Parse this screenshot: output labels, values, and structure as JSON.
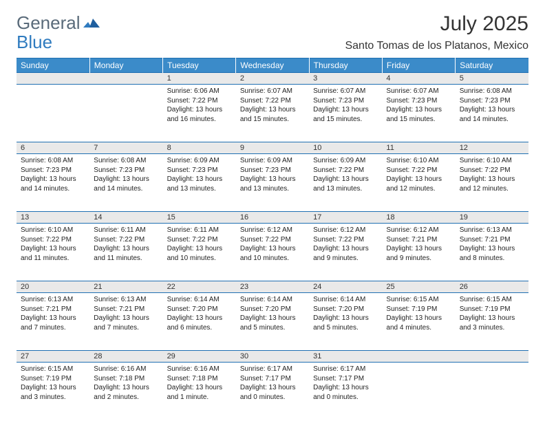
{
  "brand": {
    "part1": "General",
    "part2": "Blue"
  },
  "title": "July 2025",
  "location": "Santo Tomas de los Platanos, Mexico",
  "colors": {
    "header_bg": "#3b8bc9",
    "header_text": "#ffffff",
    "rule": "#1f6fb2",
    "daynum_bg": "#e9e9e9",
    "body_text": "#222222",
    "logo_gray": "#5a6b7a",
    "logo_blue": "#2f7bbf"
  },
  "columns": [
    "Sunday",
    "Monday",
    "Tuesday",
    "Wednesday",
    "Thursday",
    "Friday",
    "Saturday"
  ],
  "weeks": [
    [
      null,
      null,
      {
        "n": "1",
        "sunrise": "6:06 AM",
        "sunset": "7:22 PM",
        "daylight": "13 hours and 16 minutes."
      },
      {
        "n": "2",
        "sunrise": "6:07 AM",
        "sunset": "7:22 PM",
        "daylight": "13 hours and 15 minutes."
      },
      {
        "n": "3",
        "sunrise": "6:07 AM",
        "sunset": "7:23 PM",
        "daylight": "13 hours and 15 minutes."
      },
      {
        "n": "4",
        "sunrise": "6:07 AM",
        "sunset": "7:23 PM",
        "daylight": "13 hours and 15 minutes."
      },
      {
        "n": "5",
        "sunrise": "6:08 AM",
        "sunset": "7:23 PM",
        "daylight": "13 hours and 14 minutes."
      }
    ],
    [
      {
        "n": "6",
        "sunrise": "6:08 AM",
        "sunset": "7:23 PM",
        "daylight": "13 hours and 14 minutes."
      },
      {
        "n": "7",
        "sunrise": "6:08 AM",
        "sunset": "7:23 PM",
        "daylight": "13 hours and 14 minutes."
      },
      {
        "n": "8",
        "sunrise": "6:09 AM",
        "sunset": "7:23 PM",
        "daylight": "13 hours and 13 minutes."
      },
      {
        "n": "9",
        "sunrise": "6:09 AM",
        "sunset": "7:23 PM",
        "daylight": "13 hours and 13 minutes."
      },
      {
        "n": "10",
        "sunrise": "6:09 AM",
        "sunset": "7:22 PM",
        "daylight": "13 hours and 13 minutes."
      },
      {
        "n": "11",
        "sunrise": "6:10 AM",
        "sunset": "7:22 PM",
        "daylight": "13 hours and 12 minutes."
      },
      {
        "n": "12",
        "sunrise": "6:10 AM",
        "sunset": "7:22 PM",
        "daylight": "13 hours and 12 minutes."
      }
    ],
    [
      {
        "n": "13",
        "sunrise": "6:10 AM",
        "sunset": "7:22 PM",
        "daylight": "13 hours and 11 minutes."
      },
      {
        "n": "14",
        "sunrise": "6:11 AM",
        "sunset": "7:22 PM",
        "daylight": "13 hours and 11 minutes."
      },
      {
        "n": "15",
        "sunrise": "6:11 AM",
        "sunset": "7:22 PM",
        "daylight": "13 hours and 10 minutes."
      },
      {
        "n": "16",
        "sunrise": "6:12 AM",
        "sunset": "7:22 PM",
        "daylight": "13 hours and 10 minutes."
      },
      {
        "n": "17",
        "sunrise": "6:12 AM",
        "sunset": "7:22 PM",
        "daylight": "13 hours and 9 minutes."
      },
      {
        "n": "18",
        "sunrise": "6:12 AM",
        "sunset": "7:21 PM",
        "daylight": "13 hours and 9 minutes."
      },
      {
        "n": "19",
        "sunrise": "6:13 AM",
        "sunset": "7:21 PM",
        "daylight": "13 hours and 8 minutes."
      }
    ],
    [
      {
        "n": "20",
        "sunrise": "6:13 AM",
        "sunset": "7:21 PM",
        "daylight": "13 hours and 7 minutes."
      },
      {
        "n": "21",
        "sunrise": "6:13 AM",
        "sunset": "7:21 PM",
        "daylight": "13 hours and 7 minutes."
      },
      {
        "n": "22",
        "sunrise": "6:14 AM",
        "sunset": "7:20 PM",
        "daylight": "13 hours and 6 minutes."
      },
      {
        "n": "23",
        "sunrise": "6:14 AM",
        "sunset": "7:20 PM",
        "daylight": "13 hours and 5 minutes."
      },
      {
        "n": "24",
        "sunrise": "6:14 AM",
        "sunset": "7:20 PM",
        "daylight": "13 hours and 5 minutes."
      },
      {
        "n": "25",
        "sunrise": "6:15 AM",
        "sunset": "7:19 PM",
        "daylight": "13 hours and 4 minutes."
      },
      {
        "n": "26",
        "sunrise": "6:15 AM",
        "sunset": "7:19 PM",
        "daylight": "13 hours and 3 minutes."
      }
    ],
    [
      {
        "n": "27",
        "sunrise": "6:15 AM",
        "sunset": "7:19 PM",
        "daylight": "13 hours and 3 minutes."
      },
      {
        "n": "28",
        "sunrise": "6:16 AM",
        "sunset": "7:18 PM",
        "daylight": "13 hours and 2 minutes."
      },
      {
        "n": "29",
        "sunrise": "6:16 AM",
        "sunset": "7:18 PM",
        "daylight": "13 hours and 1 minute."
      },
      {
        "n": "30",
        "sunrise": "6:17 AM",
        "sunset": "7:17 PM",
        "daylight": "13 hours and 0 minutes."
      },
      {
        "n": "31",
        "sunrise": "6:17 AM",
        "sunset": "7:17 PM",
        "daylight": "13 hours and 0 minutes."
      },
      null,
      null
    ]
  ],
  "labels": {
    "sunrise": "Sunrise:",
    "sunset": "Sunset:",
    "daylight": "Daylight:"
  }
}
